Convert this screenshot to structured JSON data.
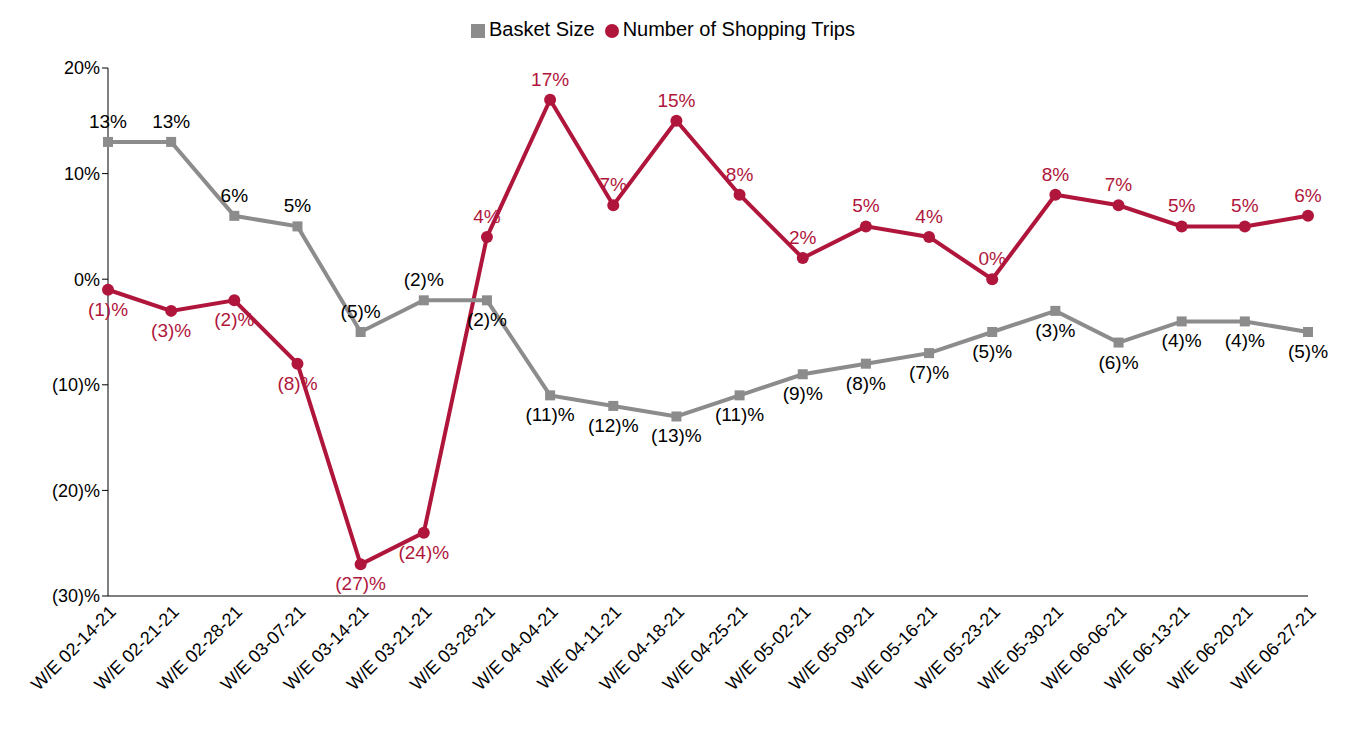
{
  "chart_data": {
    "type": "line",
    "categories": [
      "W/E 02-14-21",
      "W/E 02-21-21",
      "W/E 02-28-21",
      "W/E 03-07-21",
      "W/E 03-14-21",
      "W/E 03-21-21",
      "W/E 03-28-21",
      "W/E 04-04-21",
      "W/E 04-11-21",
      "W/E 04-18-21",
      "W/E 04-25-21",
      "W/E 05-02-21",
      "W/E 05-09-21",
      "W/E 05-16-21",
      "W/E 05-23-21",
      "W/E 05-30-21",
      "W/E 06-06-21",
      "W/E 06-13-21",
      "W/E 06-20-21",
      "W/E 06-27-21"
    ],
    "series": [
      {
        "name": "Number of Shopping Trips",
        "color": "#b0163c",
        "marker": "circle",
        "values": [
          -1,
          -3,
          -2,
          -8,
          -27,
          -24,
          4,
          17,
          7,
          15,
          8,
          2,
          5,
          4,
          0,
          8,
          7,
          5,
          5,
          6
        ],
        "value_labels": [
          "(1)%",
          "(3)%",
          "(2)%",
          "(8)%",
          "(27)%",
          "(24)%",
          "4%",
          "17%",
          "7%",
          "15%",
          "8%",
          "2%",
          "5%",
          "4%",
          "0%",
          "8%",
          "7%",
          "5%",
          "5%",
          "6%"
        ]
      },
      {
        "name": "Basket Size",
        "color": "#8c8c8c",
        "marker": "square",
        "values": [
          13,
          13,
          6,
          5,
          -5,
          -2,
          -2,
          -11,
          -12,
          -13,
          -11,
          -9,
          -8,
          -7,
          -5,
          -3,
          -6,
          -4,
          -4,
          -5
        ],
        "value_labels": [
          "13%",
          "13%",
          "6%",
          "5%",
          "(5)%",
          "(2)%",
          "(2)%",
          "(11)%",
          "(12)%",
          "(13)%",
          "(11)%",
          "(9)%",
          "(8)%",
          "(7)%",
          "(5)%",
          "(3)%",
          "(6)%",
          "(4)%",
          "(4)%",
          "(5)%"
        ]
      }
    ],
    "ylim": [
      -30,
      20
    ],
    "yticks": [
      {
        "value": -30,
        "label": "(30)%"
      },
      {
        "value": -20,
        "label": "(20)%"
      },
      {
        "value": -10,
        "label": "(10)%"
      },
      {
        "value": 0,
        "label": "0%"
      },
      {
        "value": 10,
        "label": "10%"
      },
      {
        "value": 20,
        "label": "20%"
      }
    ],
    "grid": false,
    "legend": "top",
    "data_labels": true
  }
}
